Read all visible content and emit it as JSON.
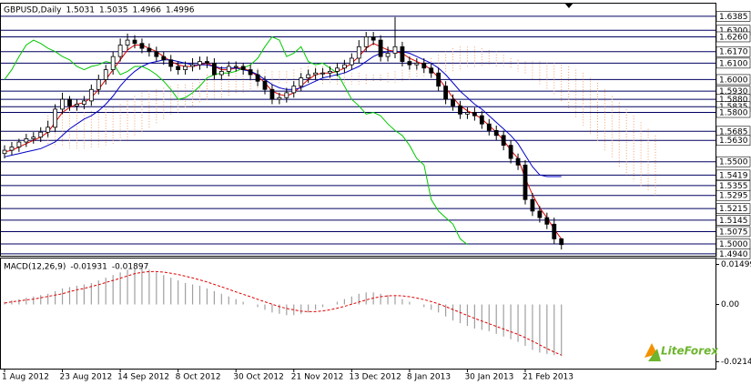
{
  "chart_data": [
    {
      "type": "candlestick",
      "title": "GBPUSD,Daily",
      "categories": [
        "1 Aug 2012",
        null,
        null,
        null,
        null,
        null,
        null,
        null,
        "23 Aug 2012",
        null,
        null,
        null,
        null,
        null,
        null,
        null,
        "14 Sep 2012",
        null,
        null,
        null,
        null,
        null,
        null,
        null,
        "8 Oct 2012",
        null,
        null,
        null,
        null,
        null,
        null,
        null,
        "30 Oct 2012",
        null,
        null,
        null,
        null,
        null,
        null,
        null,
        "21 Nov 2012",
        null,
        null,
        null,
        null,
        null,
        null,
        null,
        "13 Dec 2012",
        null,
        null,
        null,
        null,
        null,
        null,
        null,
        "8 Jan 2013",
        null,
        null,
        null,
        null,
        null,
        null,
        null,
        "30 Jan 2013",
        null,
        null,
        null,
        null,
        null,
        null,
        null,
        "21 Feb 2013",
        null,
        null,
        null,
        null,
        null,
        null,
        null,
        null,
        null,
        null,
        null,
        null,
        null,
        null,
        null,
        null,
        null,
        null
      ],
      "open": [
        1.555,
        1.557,
        1.559,
        1.562,
        1.564,
        1.565,
        1.568,
        1.571,
        1.582,
        1.588,
        1.584,
        1.585,
        1.587,
        1.594,
        1.6,
        1.606,
        1.614,
        1.621,
        1.624,
        1.622,
        1.619,
        1.617,
        1.614,
        1.612,
        1.608,
        1.606,
        1.608,
        1.609,
        1.611,
        1.61,
        1.603,
        1.605,
        1.608,
        1.608,
        1.606,
        1.603,
        1.599,
        1.594,
        1.588,
        1.589,
        1.592,
        1.596,
        1.601,
        1.603,
        1.604,
        1.604,
        1.605,
        1.607,
        1.609,
        1.613,
        1.62,
        1.626,
        1.624,
        1.614,
        1.616,
        1.62,
        1.611,
        1.609,
        1.61,
        1.607,
        1.604,
        1.596,
        1.588,
        1.584,
        1.579,
        1.58,
        1.578,
        1.573,
        1.569,
        1.566,
        1.56,
        1.552,
        1.548,
        1.527,
        1.52,
        1.516,
        1.512,
        1.5031,
        null,
        null,
        null,
        null,
        null,
        null,
        null,
        null,
        null,
        null,
        null,
        null,
        null
      ],
      "high": [
        1.56,
        1.562,
        1.564,
        1.567,
        1.568,
        1.571,
        1.575,
        1.585,
        1.592,
        1.59,
        1.588,
        1.59,
        1.597,
        1.603,
        1.609,
        1.617,
        1.625,
        1.628,
        1.627,
        1.625,
        1.622,
        1.62,
        1.617,
        1.615,
        1.611,
        1.611,
        1.613,
        1.614,
        1.614,
        1.613,
        1.608,
        1.611,
        1.611,
        1.61,
        1.609,
        1.606,
        1.602,
        1.597,
        1.592,
        1.595,
        1.599,
        1.604,
        1.606,
        1.607,
        1.607,
        1.608,
        1.61,
        1.612,
        1.616,
        1.624,
        1.629,
        1.629,
        1.627,
        1.62,
        1.638,
        1.623,
        1.614,
        1.613,
        1.613,
        1.61,
        1.607,
        1.599,
        1.591,
        1.587,
        1.583,
        1.583,
        1.581,
        1.576,
        1.572,
        1.569,
        1.563,
        1.555,
        1.551,
        1.531,
        1.523,
        1.519,
        1.516,
        1.5035,
        null,
        null,
        null,
        null,
        null,
        null,
        null,
        null,
        null,
        null,
        null,
        null,
        null
      ],
      "low": [
        1.552,
        1.554,
        1.556,
        1.559,
        1.561,
        1.562,
        1.565,
        1.568,
        1.579,
        1.581,
        1.581,
        1.582,
        1.584,
        1.591,
        1.597,
        1.603,
        1.611,
        1.618,
        1.619,
        1.616,
        1.614,
        1.611,
        1.609,
        1.605,
        1.603,
        1.603,
        1.605,
        1.606,
        1.607,
        1.6,
        1.6,
        1.602,
        1.605,
        1.603,
        1.6,
        1.596,
        1.591,
        1.585,
        1.585,
        1.586,
        1.589,
        1.593,
        1.598,
        1.6,
        1.601,
        1.601,
        1.602,
        1.604,
        1.606,
        1.61,
        1.617,
        1.621,
        1.611,
        1.611,
        1.613,
        1.608,
        1.606,
        1.606,
        1.604,
        1.601,
        1.593,
        1.585,
        1.581,
        1.576,
        1.576,
        1.575,
        1.57,
        1.566,
        1.563,
        1.557,
        1.549,
        1.545,
        1.524,
        1.517,
        1.513,
        1.509,
        1.5,
        1.4966,
        null,
        null,
        null,
        null,
        null,
        null,
        null,
        null,
        null,
        null,
        null,
        null,
        null
      ],
      "close": [
        1.557,
        1.559,
        1.562,
        1.564,
        1.565,
        1.568,
        1.571,
        1.582,
        1.588,
        1.584,
        1.585,
        1.587,
        1.594,
        1.6,
        1.606,
        1.614,
        1.621,
        1.624,
        1.622,
        1.619,
        1.617,
        1.614,
        1.612,
        1.608,
        1.606,
        1.608,
        1.609,
        1.611,
        1.61,
        1.603,
        1.605,
        1.608,
        1.608,
        1.606,
        1.603,
        1.599,
        1.594,
        1.588,
        1.589,
        1.592,
        1.596,
        1.601,
        1.603,
        1.604,
        1.604,
        1.605,
        1.607,
        1.609,
        1.613,
        1.62,
        1.626,
        1.624,
        1.614,
        1.616,
        1.62,
        1.611,
        1.609,
        1.61,
        1.607,
        1.604,
        1.596,
        1.588,
        1.584,
        1.579,
        1.58,
        1.578,
        1.573,
        1.569,
        1.566,
        1.56,
        1.552,
        1.548,
        1.527,
        1.52,
        1.516,
        1.512,
        1.5031,
        1.4996,
        null,
        null,
        null,
        null,
        null,
        null,
        null,
        null,
        null,
        null,
        null,
        null,
        null
      ],
      "lines": [
        {
          "color": "#e00000",
          "values": [
            1.556,
            1.557,
            1.559,
            1.561,
            1.563,
            1.565,
            1.568,
            1.574,
            1.58,
            1.583,
            1.585,
            1.586,
            1.589,
            1.594,
            1.6,
            1.606,
            1.612,
            1.618,
            1.621,
            1.621,
            1.619,
            1.617,
            1.614,
            1.611,
            1.609,
            1.608,
            1.608,
            1.609,
            1.61,
            1.608,
            1.606,
            1.606,
            1.607,
            1.607,
            1.605,
            1.602,
            1.598,
            1.593,
            1.591,
            1.59,
            1.592,
            1.596,
            1.6,
            1.603,
            1.604,
            1.604,
            1.605,
            1.607,
            1.61,
            1.614,
            1.619,
            1.622,
            1.62,
            1.618,
            1.617,
            1.616,
            1.613,
            1.611,
            1.609,
            1.606,
            1.601,
            1.595,
            1.589,
            1.584,
            1.581,
            1.579,
            1.576,
            1.572,
            1.568,
            1.563,
            1.557,
            1.552,
            1.54,
            1.53,
            1.522,
            1.516,
            1.509,
            1.503,
            null,
            null,
            null,
            null,
            null,
            null,
            null,
            null,
            null,
            null,
            null,
            null,
            null
          ]
        },
        {
          "color": "#0000c8",
          "values": [
            1.553,
            1.554,
            1.555,
            1.556,
            1.557,
            1.558,
            1.56,
            1.562,
            1.566,
            1.57,
            1.573,
            1.576,
            1.578,
            1.581,
            1.585,
            1.59,
            1.596,
            1.601,
            1.605,
            1.608,
            1.61,
            1.611,
            1.612,
            1.612,
            1.611,
            1.61,
            1.609,
            1.609,
            1.609,
            1.608,
            1.607,
            1.607,
            1.607,
            1.606,
            1.605,
            1.603,
            1.6,
            1.597,
            1.595,
            1.594,
            1.594,
            1.595,
            1.597,
            1.599,
            1.601,
            1.602,
            1.603,
            1.604,
            1.606,
            1.608,
            1.611,
            1.614,
            1.616,
            1.617,
            1.617,
            1.617,
            1.616,
            1.614,
            1.612,
            1.61,
            1.607,
            1.603,
            1.598,
            1.593,
            1.589,
            1.585,
            1.582,
            1.578,
            1.574,
            1.57,
            1.566,
            1.561,
            1.554,
            1.547,
            1.542,
            1.541,
            1.541,
            1.541,
            null,
            null,
            null,
            null,
            null,
            null,
            null,
            null,
            null,
            null,
            null,
            null,
            null
          ]
        },
        {
          "color": "#00c800",
          "values": [
            1.6,
            1.606,
            1.614,
            1.621,
            1.624,
            1.622,
            1.619,
            1.617,
            1.614,
            1.612,
            1.608,
            1.606,
            1.608,
            1.609,
            1.611,
            1.61,
            1.603,
            1.605,
            1.608,
            1.608,
            1.606,
            1.603,
            1.599,
            1.594,
            1.588,
            1.589,
            1.592,
            1.596,
            1.601,
            1.603,
            1.604,
            1.604,
            1.605,
            1.607,
            1.609,
            1.613,
            1.62,
            1.626,
            1.624,
            1.614,
            1.616,
            1.62,
            1.611,
            1.609,
            1.61,
            1.607,
            1.604,
            1.596,
            1.588,
            1.584,
            1.579,
            1.58,
            1.578,
            1.573,
            1.569,
            1.566,
            1.56,
            1.552,
            1.548,
            1.527,
            1.52,
            1.516,
            1.512,
            1.5031,
            1.4996,
            null,
            null,
            null,
            null,
            null,
            null,
            null,
            null,
            null,
            null,
            null,
            null,
            null,
            null,
            null,
            null,
            null,
            null,
            null,
            null,
            null,
            null,
            null,
            null,
            null,
            null
          ]
        }
      ],
      "cloud": {
        "color": "#f0a070",
        "upper": [
          null,
          null,
          null,
          null,
          null,
          null,
          1.578,
          1.579,
          1.579,
          1.58,
          1.58,
          1.58,
          1.581,
          1.581,
          1.582,
          1.583,
          1.585,
          1.587,
          1.59,
          1.592,
          1.593,
          1.594,
          1.595,
          1.596,
          1.597,
          1.597,
          1.598,
          1.6,
          1.603,
          1.606,
          1.608,
          1.609,
          1.609,
          1.609,
          1.608,
          1.607,
          1.606,
          1.605,
          1.605,
          1.605,
          1.606,
          1.607,
          1.608,
          1.608,
          1.608,
          1.607,
          1.606,
          1.605,
          1.604,
          1.604,
          1.603,
          1.603,
          1.603,
          1.604,
          1.605,
          1.606,
          1.607,
          1.609,
          1.611,
          1.613,
          1.615,
          1.617,
          1.619,
          1.62,
          1.62,
          1.62,
          1.619,
          1.618,
          1.617,
          1.615,
          1.613,
          1.612,
          1.611,
          1.611,
          1.611,
          1.61,
          1.61,
          1.609,
          1.608,
          1.606,
          1.604,
          1.601,
          1.598,
          1.594,
          1.59,
          1.586,
          1.582,
          1.578,
          1.574,
          1.57,
          1.566
        ],
        "lower": [
          null,
          null,
          null,
          null,
          null,
          null,
          1.56,
          1.559,
          1.559,
          1.558,
          1.558,
          1.558,
          1.558,
          1.559,
          1.56,
          1.561,
          1.562,
          1.563,
          1.565,
          1.567,
          1.57,
          1.573,
          1.576,
          1.578,
          1.58,
          1.582,
          1.584,
          1.586,
          1.587,
          1.588,
          1.589,
          1.59,
          1.591,
          1.592,
          1.593,
          1.594,
          1.595,
          1.596,
          1.597,
          1.597,
          1.598,
          1.598,
          1.598,
          1.598,
          1.597,
          1.597,
          1.597,
          1.597,
          1.597,
          1.597,
          1.597,
          1.598,
          1.598,
          1.598,
          1.598,
          1.599,
          1.6,
          1.601,
          1.601,
          1.602,
          1.603,
          1.604,
          1.605,
          1.606,
          1.607,
          1.607,
          1.608,
          1.608,
          1.608,
          1.608,
          1.607,
          1.605,
          1.603,
          1.6,
          1.597,
          1.594,
          1.59,
          1.586,
          1.582,
          1.577,
          1.572,
          1.567,
          1.562,
          1.557,
          1.552,
          1.547,
          1.542,
          1.538,
          1.535,
          1.532,
          1.529
        ]
      },
      "ylim": [
        1.4928,
        1.6462
      ],
      "yticks": [
        1.6385,
        {
          "value": 1.63,
          "label": "1.6300"
        },
        {
          "value": 1.626,
          "label": "1.6260"
        },
        {
          "value": 1.617,
          "label": "1.6170"
        },
        {
          "value": 1.61,
          "label": "1.6100"
        },
        {
          "value": 1.6,
          "label": "1.6000"
        },
        {
          "value": 1.593,
          "label": "1.5930"
        },
        {
          "value": 1.588,
          "label": "1.5880"
        },
        1.5835,
        {
          "value": 1.58,
          "label": "1.5800"
        },
        1.5685,
        {
          "value": 1.563,
          "label": "1.5630"
        },
        {
          "value": 1.55,
          "label": "1.5500"
        },
        1.5419,
        1.5355,
        1.5295,
        1.5215,
        1.5145,
        1.5075,
        {
          "value": 1.5,
          "label": "1.5000"
        },
        {
          "value": 1.494,
          "label": "1.4940"
        }
      ],
      "grid": true,
      "grid_color": "#000060"
    },
    {
      "type": "macd",
      "title": "MACD(12,26,9)",
      "values": [
        0.001,
        0.0015,
        0.002,
        0.0025,
        0.003,
        0.0035,
        0.004,
        0.005,
        0.006,
        0.0065,
        0.007,
        0.0075,
        0.008,
        0.009,
        0.01,
        0.011,
        0.012,
        0.013,
        0.0135,
        0.0135,
        0.013,
        0.012,
        0.011,
        0.01,
        0.009,
        0.008,
        0.0075,
        0.007,
        0.006,
        0.005,
        0.004,
        0.003,
        0.002,
        0.001,
        0,
        -0.001,
        -0.002,
        -0.003,
        -0.0035,
        -0.004,
        -0.004,
        -0.0035,
        -0.003,
        -0.002,
        -0.001,
        0,
        0.001,
        0.002,
        0.003,
        0.004,
        0.0045,
        0.0045,
        0.004,
        0.0035,
        0.003,
        0.002,
        0.001,
        0,
        -0.001,
        -0.002,
        -0.003,
        -0.0045,
        -0.006,
        -0.007,
        -0.008,
        -0.009,
        -0.0095,
        -0.01,
        -0.011,
        -0.012,
        -0.013,
        -0.014,
        -0.0155,
        -0.017,
        -0.018,
        -0.0185,
        -0.019,
        -0.01931
      ],
      "signal": [
        0.0005,
        0.001,
        0.0013,
        0.0017,
        0.002,
        0.0025,
        0.003,
        0.0035,
        0.004,
        0.0048,
        0.0055,
        0.006,
        0.0067,
        0.0074,
        0.0082,
        0.009,
        0.0098,
        0.0107,
        0.0115,
        0.012,
        0.0123,
        0.0123,
        0.0121,
        0.0117,
        0.0112,
        0.0106,
        0.0099,
        0.0092,
        0.0084,
        0.0075,
        0.0066,
        0.0057,
        0.0047,
        0.0038,
        0.0029,
        0.0019,
        0.001,
        0.0001,
        -0.0008,
        -0.0015,
        -0.002,
        -0.0025,
        -0.0027,
        -0.0027,
        -0.0024,
        -0.002,
        -0.0014,
        -0.0007,
        0.0001,
        0.0009,
        0.0017,
        0.0024,
        0.0029,
        0.0032,
        0.0033,
        0.0032,
        0.0029,
        0.0024,
        0.0018,
        0.0011,
        0.0002,
        -0.0008,
        -0.0019,
        -0.003,
        -0.0041,
        -0.0052,
        -0.0062,
        -0.0072,
        -0.0082,
        -0.0092,
        -0.0102,
        -0.0112,
        -0.0124,
        -0.0137,
        -0.0151,
        -0.0165,
        -0.0178,
        -0.01897
      ],
      "color": "#a0a0a0",
      "signal_color": "#e00000",
      "ylim": [
        -0.024,
        0.0172
      ],
      "yticks": [
        0.01499,
        {
          "value": 0,
          "label": "0.00"
        },
        -0.02141
      ]
    }
  ],
  "logo": {
    "text": "LiteForex"
  }
}
